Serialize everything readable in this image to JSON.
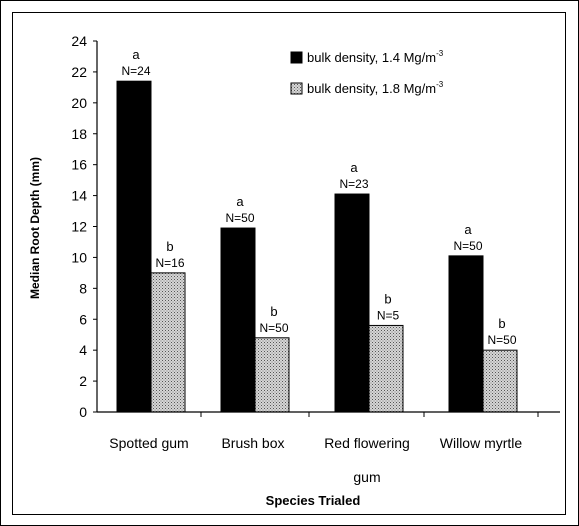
{
  "chart_data": {
    "type": "bar",
    "xlabel": "Species Trialed",
    "ylabel": "Median Root Depth (mm)",
    "ylim": [
      0,
      24
    ],
    "yticks": [
      "0",
      "2",
      "4",
      "6",
      "8",
      "10",
      "12",
      "14",
      "16",
      "18",
      "20",
      "22",
      "24"
    ],
    "grid": false,
    "legend_position": "top-right",
    "categories": [
      {
        "line1": "Spotted gum",
        "line2": ""
      },
      {
        "line1": "Brush box",
        "line2": ""
      },
      {
        "line1": "Red flowering",
        "line2": "gum"
      },
      {
        "line1": "Willow myrtle",
        "line2": ""
      }
    ],
    "series": [
      {
        "name": "bulk density, 1.4 Mg/m",
        "name_sup": "-3",
        "fill": "solid",
        "color": "#000000",
        "values": [
          21.4,
          11.9,
          14.1,
          10.1
        ],
        "letters": [
          "a",
          "a",
          "a",
          "a"
        ],
        "counts": [
          "N=24",
          "N=50",
          "N=23",
          "N=50"
        ]
      },
      {
        "name": "bulk density, 1.8 Mg/m",
        "name_sup": "-3",
        "fill": "stipple",
        "color": "#9a9a9a",
        "values": [
          9.0,
          4.8,
          5.6,
          4.0
        ],
        "letters": [
          "b",
          "b",
          "b",
          "b"
        ],
        "counts": [
          "N=16",
          "N=50",
          "N=5",
          "N=50"
        ]
      }
    ]
  }
}
